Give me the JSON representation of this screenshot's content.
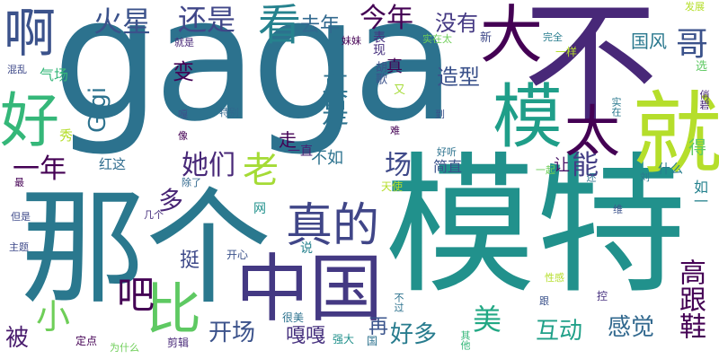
{
  "words": [
    {
      "id": "gaga",
      "text": "gaga",
      "color": "#2c728e"
    },
    {
      "id": "bu",
      "text": "不",
      "color": "#482878"
    },
    {
      "id": "moteh",
      "text": "模特",
      "color": "#21918c"
    },
    {
      "id": "nage",
      "text": "那个",
      "color": "#2a788e"
    },
    {
      "id": "zhongguo",
      "text": "中国",
      "color": "#443983"
    },
    {
      "id": "jiu",
      "text": "就",
      "color": "#b5de2b"
    },
    {
      "id": "a",
      "text": "啊",
      "color": "#3b528b"
    },
    {
      "id": "hao",
      "text": "好",
      "color": "#35b779"
    },
    {
      "id": "da",
      "text": "大",
      "color": "#440154"
    },
    {
      "id": "mo",
      "text": "模",
      "color": "#1f9e89"
    },
    {
      "id": "tai",
      "text": "太",
      "color": "#440154"
    },
    {
      "id": "bi",
      "text": "比",
      "color": "#5ec962"
    },
    {
      "id": "zhende",
      "text": "真的",
      "color": "#404688"
    },
    {
      "id": "kan",
      "text": "看",
      "color": "#26828e"
    },
    {
      "id": "huoxing",
      "text": "火星",
      "color": "#3b528b"
    },
    {
      "id": "haishi",
      "text": "还是",
      "color": "#404688"
    },
    {
      "id": "qunian",
      "text": "去年",
      "color": "#31688e"
    },
    {
      "id": "jinnian",
      "text": "今年",
      "color": "#440154"
    },
    {
      "id": "meiyou",
      "text": "没有",
      "color": "#443983"
    },
    {
      "id": "ge",
      "text": "哥",
      "color": "#3b528b"
    },
    {
      "id": "zhenshi",
      "text": "真是",
      "color": "#2c728e"
    },
    {
      "id": "zaoxing",
      "text": "造型",
      "color": "#3b528b"
    },
    {
      "id": "yinian",
      "text": "一年",
      "color": "#440154"
    },
    {
      "id": "tamen",
      "text": "她们",
      "color": "#482878"
    },
    {
      "id": "lao",
      "text": "老",
      "color": "#a5db36"
    },
    {
      "id": "chang",
      "text": "场",
      "color": "#3e4989"
    },
    {
      "id": "neng",
      "text": "能",
      "color": "#433e85"
    },
    {
      "id": "ba",
      "text": "吧",
      "color": "#440154"
    },
    {
      "id": "xiao",
      "text": "小",
      "color": "#6ece58"
    },
    {
      "id": "mei",
      "text": "美",
      "color": "#22a884"
    },
    {
      "id": "gaogenxie",
      "text": "高跟鞋",
      "color": "#440154"
    },
    {
      "id": "kaichang",
      "text": "开场",
      "color": "#3b528b"
    },
    {
      "id": "haoduo",
      "text": "好多",
      "color": "#287c8e"
    },
    {
      "id": "hudong",
      "text": "互动",
      "color": "#1fa088"
    },
    {
      "id": "ganjue",
      "text": "感觉",
      "color": "#31688e"
    },
    {
      "id": "bei",
      "text": "被",
      "color": "#481b6d"
    },
    {
      "id": "gigi",
      "text": "Gigi",
      "color": "#2c728e"
    },
    {
      "id": "duo",
      "text": "多",
      "color": "#482475"
    },
    {
      "id": "bian",
      "text": "变",
      "color": "#440154"
    },
    {
      "id": "guofeng",
      "text": "国风",
      "color": "#2a788e"
    },
    {
      "id": "huge",
      "text": "胡歌",
      "color": "#3b528b"
    },
    {
      "id": "zhen",
      "text": "真",
      "color": "#440154"
    },
    {
      "id": "hongzhe",
      "text": "红这",
      "color": "#2f6c8e"
    },
    {
      "id": "gaga2",
      "text": "嘎嘎",
      "color": "#46307e"
    },
    {
      "id": "ting",
      "text": "挺",
      "color": "#3e4989"
    },
    {
      "id": "zai",
      "text": "再",
      "color": "#3a548c"
    },
    {
      "id": "jianzhi",
      "text": "简直",
      "color": "#3b528b"
    },
    {
      "id": "zou",
      "text": "走",
      "color": "#440154"
    },
    {
      "id": "yizhi",
      "text": "一直",
      "color": "#482173"
    },
    {
      "id": "buru",
      "text": "不如",
      "color": "#2c728e"
    },
    {
      "id": "rang",
      "text": "让",
      "color": "#481467"
    },
    {
      "id": "shenme",
      "text": "什么",
      "color": "#287d8e"
    },
    {
      "id": "de",
      "text": "得",
      "color": "#5ec962"
    },
    {
      "id": "ru",
      "text": "如一",
      "color": "#26828e"
    },
    {
      "id": "qichang",
      "text": "气场",
      "color": "#35b779"
    },
    {
      "id": "hunluan",
      "text": "混乱",
      "color": "#3e4989"
    },
    {
      "id": "jiushi",
      "text": "就是",
      "color": "#482878"
    },
    {
      "id": "meimei",
      "text": "妹妹",
      "color": "#440154"
    },
    {
      "id": "biaoxian",
      "text": "表现",
      "color": "#46307e"
    },
    {
      "id": "shizaitai",
      "text": "实在太",
      "color": "#6ece58"
    },
    {
      "id": "xin",
      "text": "新",
      "color": "#3e4989"
    },
    {
      "id": "wanquan",
      "text": "完全",
      "color": "#287d8e"
    },
    {
      "id": "yiyang",
      "text": "一样",
      "color": "#b5de2b"
    },
    {
      "id": "fazhan",
      "text": "发展",
      "color": "#b5de2b"
    },
    {
      "id": "xuan",
      "text": "选",
      "color": "#5ec962"
    },
    {
      "id": "you",
      "text": "又",
      "color": "#a5db36"
    },
    {
      "id": "dao",
      "text": "到",
      "color": "#3b528b"
    },
    {
      "id": "shizai",
      "text": "实在",
      "color": "#2a788e"
    },
    {
      "id": "qiaobi",
      "text": "俏碧",
      "color": "#482878"
    },
    {
      "id": "xiu",
      "text": "秀",
      "color": "#b5de2b"
    },
    {
      "id": "e",
      "text": "嘎",
      "color": "#3b528b"
    },
    {
      "id": "tebie",
      "text": "特别",
      "color": "#31688e"
    },
    {
      "id": "xiang",
      "text": "像",
      "color": "#440154"
    },
    {
      "id": "nan",
      "text": "难",
      "color": "#440154"
    },
    {
      "id": "haoting",
      "text": "好听",
      "color": "#2c728e"
    },
    {
      "id": "zui",
      "text": "最",
      "color": "#440154"
    },
    {
      "id": "chule",
      "text": "除了",
      "color": "#31688e"
    },
    {
      "id": "tianshi",
      "text": "天使",
      "color": "#b5de2b"
    },
    {
      "id": "yiqi",
      "text": "一起",
      "color": "#6ece58"
    },
    {
      "id": "liu",
      "text": "刘",
      "color": "#2a788e"
    },
    {
      "id": "huan",
      "text": "还",
      "color": "#2c728e"
    },
    {
      "id": "danshi",
      "text": "但是",
      "color": "#3e4989"
    },
    {
      "id": "jige",
      "text": "几个",
      "color": "#46307e"
    },
    {
      "id": "wang",
      "text": "网",
      "color": "#21918c"
    },
    {
      "id": "weihu",
      "text": "维",
      "color": "#3b528b"
    },
    {
      "id": "zhuti",
      "text": "主题",
      "color": "#3e4989"
    },
    {
      "id": "shuo",
      "text": "说",
      "color": "#26828e"
    },
    {
      "id": "kaixin",
      "text": "开心",
      "color": "#3b528b"
    },
    {
      "id": "xinggan",
      "text": "性感",
      "color": "#b5de2b"
    },
    {
      "id": "buguo",
      "text": "不过",
      "color": "#2c728e"
    },
    {
      "id": "gen",
      "text": "跟",
      "color": "#3b528b"
    },
    {
      "id": "kong",
      "text": "控",
      "color": "#46307e"
    },
    {
      "id": "henmei",
      "text": "很美",
      "color": "#2c728e"
    },
    {
      "id": "dingdian",
      "text": "定点",
      "color": "#440154"
    },
    {
      "id": "weishenme",
      "text": "为什么",
      "color": "#6ece58"
    },
    {
      "id": "jianji",
      "text": "剪辑",
      "color": "#482878"
    },
    {
      "id": "qiangda",
      "text": "强大",
      "color": "#21918c"
    },
    {
      "id": "guo",
      "text": "国",
      "color": "#2c728e"
    },
    {
      "id": "qita",
      "text": "其他",
      "color": "#35b779"
    }
  ]
}
